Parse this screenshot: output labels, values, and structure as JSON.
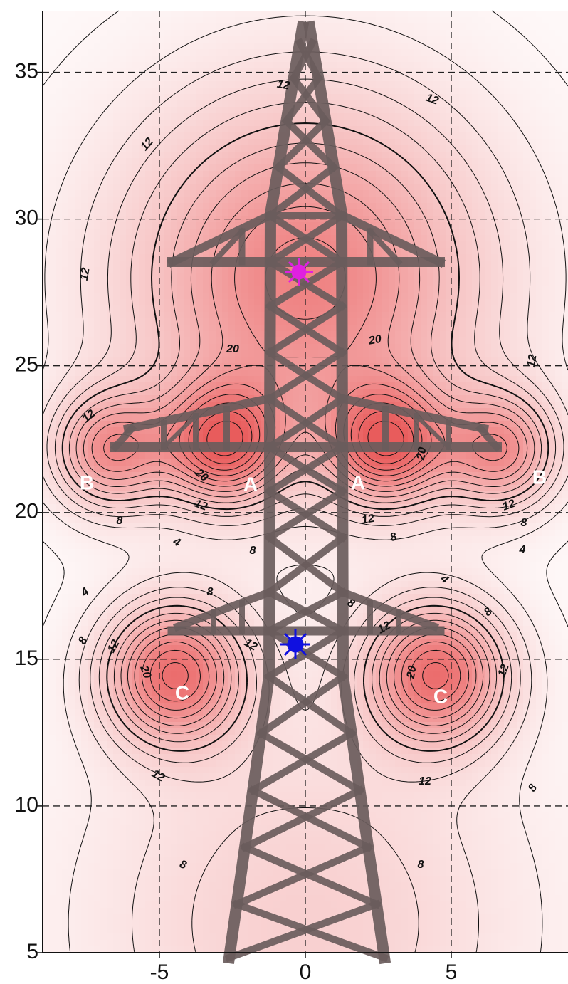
{
  "chart_data": {
    "type": "contour",
    "xlim": [
      -9,
      9
    ],
    "ylim": [
      5,
      37.1
    ],
    "xticks": [
      -5,
      0,
      5
    ],
    "yticks": [
      5,
      10,
      15,
      20,
      25,
      30,
      35
    ],
    "grid": true,
    "levels": [
      2,
      4,
      6,
      8,
      10,
      12,
      14,
      16,
      18,
      20,
      22,
      24,
      26,
      28,
      30
    ],
    "solid_level": 12,
    "colors": [
      "#ffffff",
      "#fbe3e3",
      "#f7c6c6",
      "#f3a4a4",
      "#ee7c7c",
      "#e85c5c"
    ],
    "contour_labels": [
      12,
      12,
      12,
      12,
      12,
      12,
      20,
      20,
      20,
      20,
      12,
      12,
      12,
      8,
      8,
      8,
      8,
      4,
      4,
      4,
      4,
      8,
      8,
      8,
      8,
      12,
      12,
      12,
      12,
      20,
      20,
      12,
      12,
      8,
      8,
      8
    ],
    "annotations": [
      "A",
      "A",
      "B",
      "B",
      "C",
      "C"
    ]
  }
}
